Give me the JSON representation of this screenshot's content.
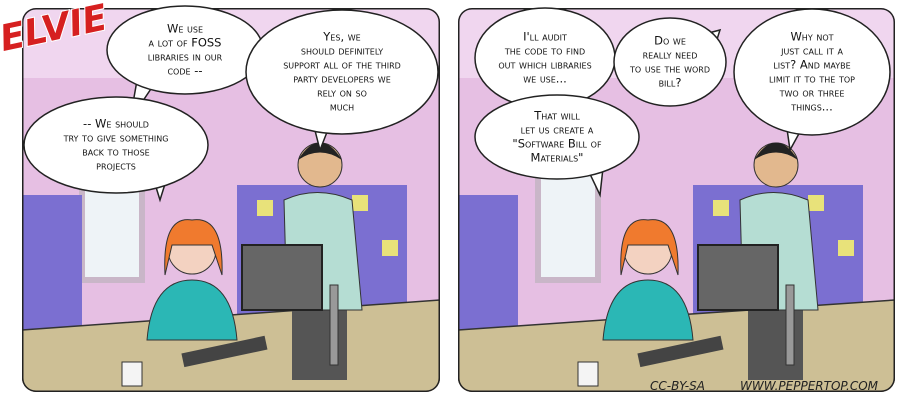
{
  "logo": "ELVIE",
  "panels": [
    {
      "bubbles": [
        {
          "lines": [
            "We use",
            "a lot of FOSS",
            "libraries in our",
            "code --"
          ]
        },
        {
          "lines": [
            "-- We should",
            "try to give something",
            "back to those",
            "projects"
          ]
        },
        {
          "lines": [
            "Yes, we",
            "should definitely",
            "support all of the third",
            "party developers we",
            "rely on so",
            "much"
          ]
        }
      ]
    },
    {
      "bubbles": [
        {
          "lines": [
            "I'll audit",
            "the code to find",
            "out which libraries",
            "we use..."
          ]
        },
        {
          "lines": [
            "That will",
            "let us create a",
            "\"Software Bill of",
            "Materials\""
          ]
        },
        {
          "lines": [
            "Do we",
            "really need",
            "to use the word",
            "bill?"
          ]
        },
        {
          "lines": [
            "Why not",
            "just call it a",
            "list? And maybe",
            "limit it to the top",
            "two or three",
            "things..."
          ]
        }
      ]
    }
  ],
  "footer": {
    "license": "CC-BY-SA",
    "website": "WWW.PEPPERTOP.COM"
  }
}
